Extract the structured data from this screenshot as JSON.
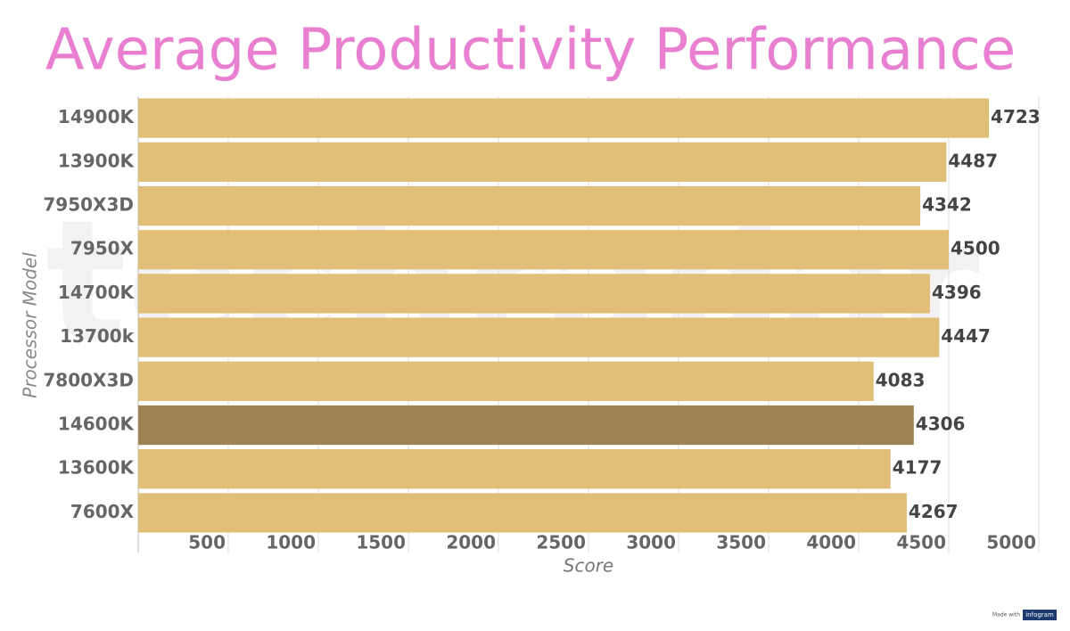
{
  "chart_data": {
    "type": "hbar",
    "title": "Average Productivity Performance",
    "watermark": "techradar",
    "credit": [
      "Made with",
      "infogram"
    ],
    "x_label": "Score",
    "y_label": "Processor Model",
    "categories": [
      "14900K",
      "13900K",
      "7950X3D",
      "7950X",
      "14700K",
      "13700k",
      "7800X3D",
      "14600K",
      "13600K",
      "7600X"
    ],
    "values": [
      4723,
      4487,
      4342,
      4500,
      4396,
      4447,
      4083,
      4306,
      4177,
      4267
    ],
    "colors": [
      "#e2bf78",
      "#e2bf78",
      "#e2bf78",
      "#e2bf78",
      "#e2bf78",
      "#e2bf78",
      "#e2bf78",
      "#9e8454",
      "#e2bf78",
      "#e2bf78"
    ],
    "xlim": [
      0,
      5000
    ],
    "xticks": [
      500,
      1000,
      1500,
      2000,
      2500,
      3000,
      3500,
      4000,
      4500,
      5000
    ],
    "grid": true
  }
}
